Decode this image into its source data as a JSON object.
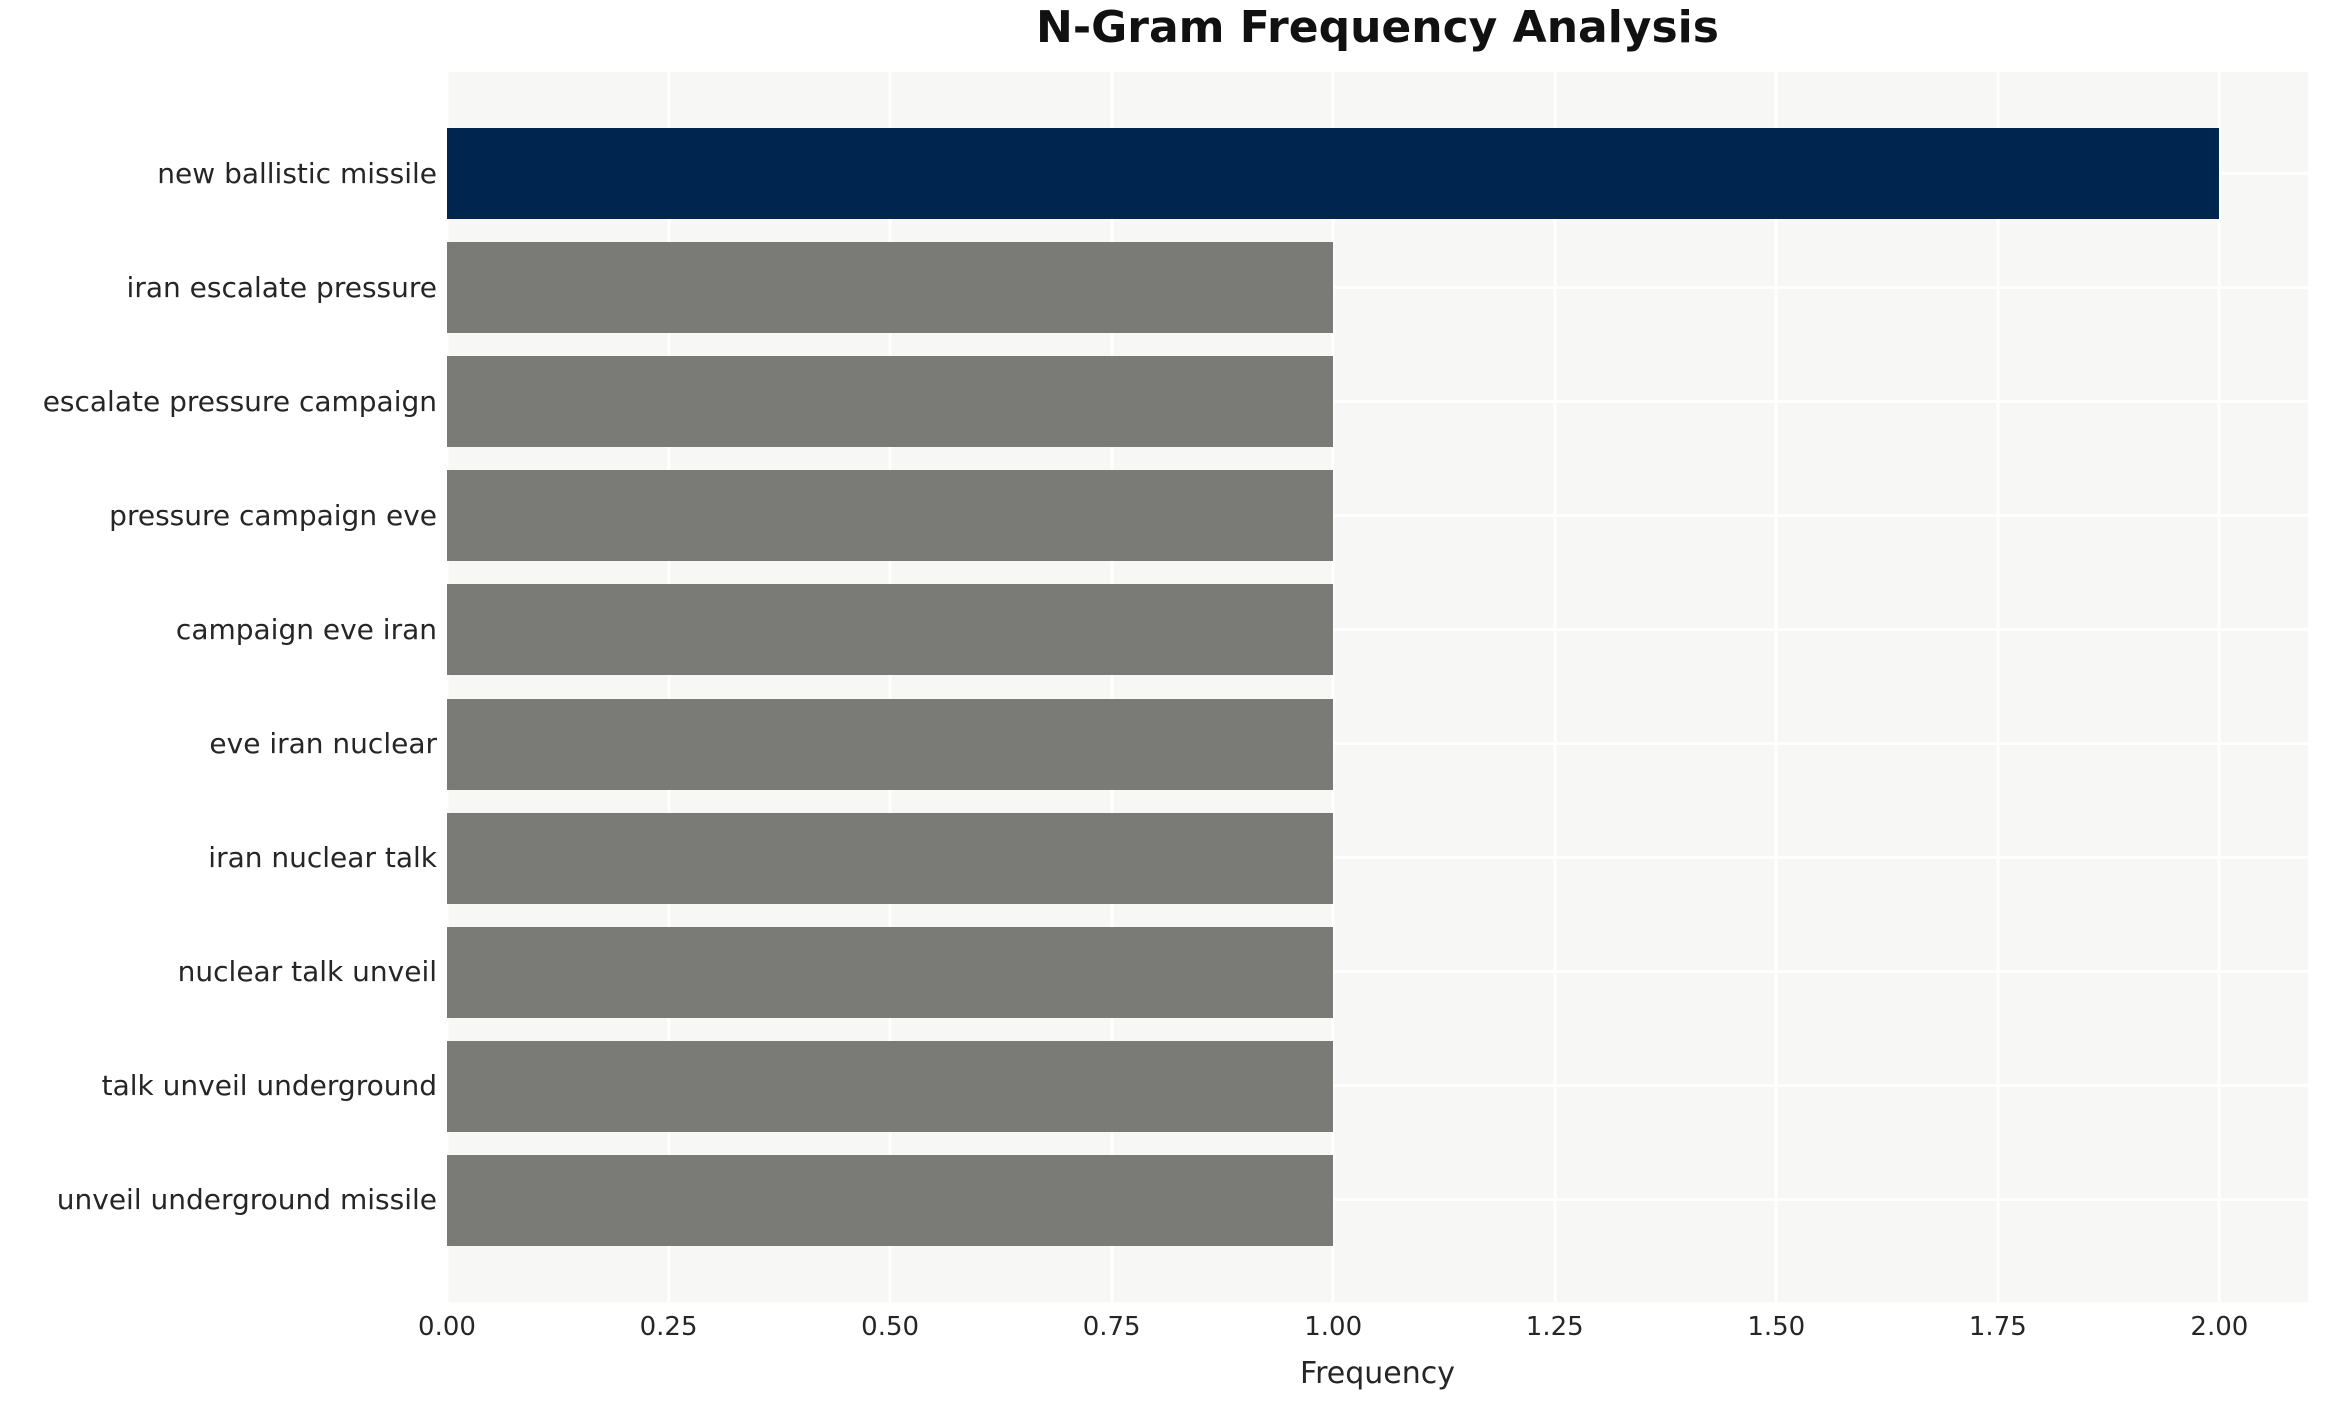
{
  "chart_data": {
    "type": "bar",
    "orientation": "horizontal",
    "title": "N-Gram Frequency Analysis",
    "xlabel": "Frequency",
    "ylabel": "",
    "categories": [
      "new ballistic missile",
      "iran escalate pressure",
      "escalate pressure campaign",
      "pressure campaign eve",
      "campaign eve iran",
      "eve iran nuclear",
      "iran nuclear talk",
      "nuclear talk unveil",
      "talk unveil underground",
      "unveil underground missile"
    ],
    "values": [
      2,
      1,
      1,
      1,
      1,
      1,
      1,
      1,
      1,
      1
    ],
    "bar_colors": [
      "#00254e",
      "#7a7a77",
      "#7a7a77",
      "#7a7a77",
      "#7a7a77",
      "#7a7a77",
      "#7a7a77",
      "#7a7a77",
      "#7a7a77",
      "#7a7a77"
    ],
    "x_ticks": [
      0,
      0.25,
      0.5,
      0.75,
      1.0,
      1.25,
      1.5,
      1.75,
      2.0
    ],
    "x_tick_labels": [
      "0.00",
      "0.25",
      "0.50",
      "0.75",
      "1.00",
      "1.25",
      "1.50",
      "1.75",
      "2.00"
    ],
    "xlim": [
      0,
      2.1
    ],
    "grid": "on",
    "legend_position": "none",
    "colors": {
      "highlight_bar": "#00254e",
      "default_bar": "#7a7a77",
      "panel_background": "#f7f7f6",
      "figure_background": "#ffffff",
      "gridline": "#ffffff",
      "tick_text": "#262626",
      "title_text": "#111111"
    }
  }
}
